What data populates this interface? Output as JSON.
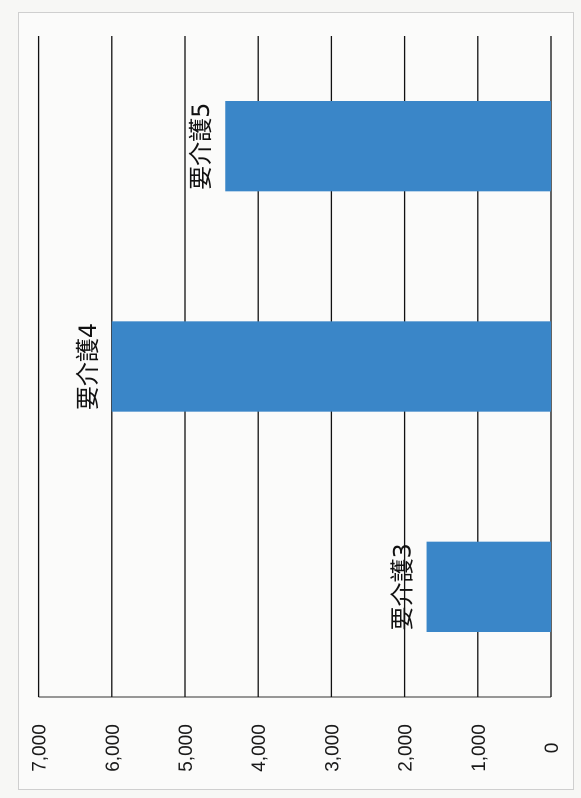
{
  "chart_data": {
    "type": "bar",
    "orientation": "vertical",
    "rotated": "page rotated 90° counter-clockwise",
    "categories": [
      "要介護3",
      "要介護4",
      "要介護5"
    ],
    "values": [
      1700,
      6000,
      4450
    ],
    "series": [
      {
        "values": [
          1700,
          6000,
          4450
        ]
      }
    ],
    "ylim": [
      0,
      7000
    ],
    "yticks": [
      "0",
      "1,000",
      "2,000",
      "3,000",
      "4,000",
      "5,000",
      "6,000",
      "7,000"
    ],
    "ytick_values": [
      0,
      1000,
      2000,
      3000,
      4000,
      5000,
      6000,
      7000
    ],
    "grid": true,
    "legend": "none",
    "data_labels_position": "above bars",
    "colors": {
      "bar": "#3a86c8",
      "grid": "#111111"
    },
    "title": "",
    "xlabel": "",
    "ylabel": ""
  }
}
